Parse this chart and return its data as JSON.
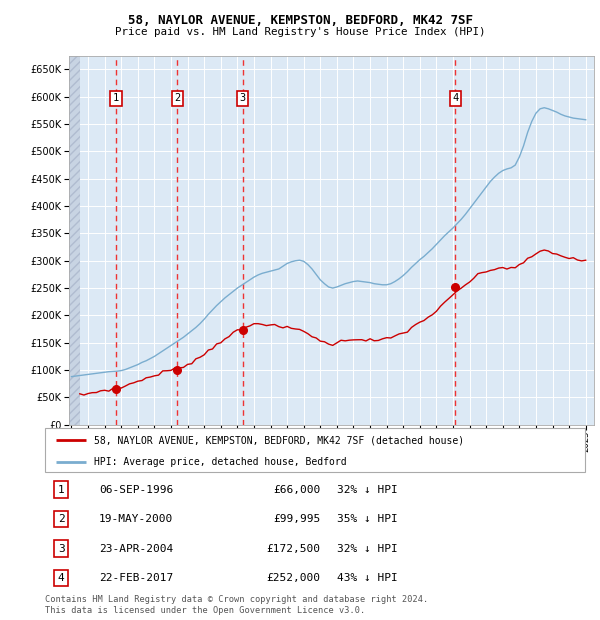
{
  "title1": "58, NAYLOR AVENUE, KEMPSTON, BEDFORD, MK42 7SF",
  "title2": "Price paid vs. HM Land Registry's House Price Index (HPI)",
  "legend_property": "58, NAYLOR AVENUE, KEMPSTON, BEDFORD, MK42 7SF (detached house)",
  "legend_hpi": "HPI: Average price, detached house, Bedford",
  "footer": "Contains HM Land Registry data © Crown copyright and database right 2024.\nThis data is licensed under the Open Government Licence v3.0.",
  "sales": [
    {
      "num": 1,
      "date": "06-SEP-1996",
      "price": 66000,
      "pct": "32% ↓ HPI",
      "year": 1996.69
    },
    {
      "num": 2,
      "date": "19-MAY-2000",
      "price": 99995,
      "pct": "35% ↓ HPI",
      "year": 2000.38
    },
    {
      "num": 3,
      "date": "23-APR-2004",
      "price": 172500,
      "pct": "32% ↓ HPI",
      "year": 2004.31
    },
    {
      "num": 4,
      "date": "22-FEB-2017",
      "price": 252000,
      "pct": "43% ↓ HPI",
      "year": 2017.14
    }
  ],
  "hpi_color": "#7aadcf",
  "property_color": "#cc0000",
  "background_color": "#dce9f5",
  "grid_color": "#ffffff",
  "vline_color": "#ee3333",
  "ylim": [
    0,
    675000
  ],
  "ytick_step": 50000,
  "xlim_start": 1994.0,
  "xlim_end": 2025.5,
  "hpi_years": [
    1994.0,
    1994.25,
    1994.5,
    1994.75,
    1995.0,
    1995.25,
    1995.5,
    1995.75,
    1996.0,
    1996.25,
    1996.5,
    1996.75,
    1997.0,
    1997.25,
    1997.5,
    1997.75,
    1998.0,
    1998.25,
    1998.5,
    1998.75,
    1999.0,
    1999.25,
    1999.5,
    1999.75,
    2000.0,
    2000.25,
    2000.5,
    2000.75,
    2001.0,
    2001.25,
    2001.5,
    2001.75,
    2002.0,
    2002.25,
    2002.5,
    2002.75,
    2003.0,
    2003.25,
    2003.5,
    2003.75,
    2004.0,
    2004.25,
    2004.5,
    2004.75,
    2005.0,
    2005.25,
    2005.5,
    2005.75,
    2006.0,
    2006.25,
    2006.5,
    2006.75,
    2007.0,
    2007.25,
    2007.5,
    2007.75,
    2008.0,
    2008.25,
    2008.5,
    2008.75,
    2009.0,
    2009.25,
    2009.5,
    2009.75,
    2010.0,
    2010.25,
    2010.5,
    2010.75,
    2011.0,
    2011.25,
    2011.5,
    2011.75,
    2012.0,
    2012.25,
    2012.5,
    2012.75,
    2013.0,
    2013.25,
    2013.5,
    2013.75,
    2014.0,
    2014.25,
    2014.5,
    2014.75,
    2015.0,
    2015.25,
    2015.5,
    2015.75,
    2016.0,
    2016.25,
    2016.5,
    2016.75,
    2017.0,
    2017.25,
    2017.5,
    2017.75,
    2018.0,
    2018.25,
    2018.5,
    2018.75,
    2019.0,
    2019.25,
    2019.5,
    2019.75,
    2020.0,
    2020.25,
    2020.5,
    2020.75,
    2021.0,
    2021.25,
    2021.5,
    2021.75,
    2022.0,
    2022.25,
    2022.5,
    2022.75,
    2023.0,
    2023.25,
    2023.5,
    2023.75,
    2024.0,
    2024.25,
    2024.5,
    2024.75,
    2025.0
  ],
  "hpi_values": [
    88000,
    89000,
    90000,
    91000,
    92000,
    93000,
    94000,
    95000,
    96000,
    97000,
    97500,
    98000,
    99000,
    101000,
    104000,
    107000,
    110000,
    114000,
    117000,
    121000,
    125000,
    130000,
    135000,
    140000,
    145000,
    150000,
    155000,
    160000,
    166000,
    172000,
    178000,
    185000,
    193000,
    202000,
    210000,
    218000,
    225000,
    232000,
    238000,
    244000,
    250000,
    255000,
    260000,
    265000,
    270000,
    274000,
    277000,
    279000,
    281000,
    283000,
    285000,
    290000,
    295000,
    298000,
    300000,
    301000,
    299000,
    293000,
    285000,
    275000,
    265000,
    258000,
    252000,
    250000,
    252000,
    255000,
    258000,
    260000,
    262000,
    263000,
    262000,
    261000,
    260000,
    258000,
    257000,
    256000,
    256000,
    258000,
    262000,
    267000,
    273000,
    280000,
    288000,
    295000,
    302000,
    308000,
    315000,
    322000,
    330000,
    338000,
    346000,
    353000,
    360000,
    368000,
    376000,
    385000,
    395000,
    405000,
    415000,
    425000,
    435000,
    445000,
    453000,
    460000,
    465000,
    468000,
    470000,
    475000,
    490000,
    510000,
    535000,
    555000,
    570000,
    578000,
    580000,
    578000,
    575000,
    572000,
    568000,
    565000,
    563000,
    561000,
    560000,
    559000,
    558000
  ],
  "prop_years": [
    1994.5,
    1994.75,
    1995.0,
    1995.25,
    1995.5,
    1995.75,
    1996.0,
    1996.25,
    1996.5,
    1996.75,
    1997.0,
    1997.25,
    1997.5,
    1997.75,
    1998.0,
    1998.25,
    1998.5,
    1998.75,
    1999.0,
    1999.25,
    1999.5,
    1999.75,
    2000.0,
    2000.25,
    2000.5,
    2000.75,
    2001.0,
    2001.25,
    2001.5,
    2001.75,
    2002.0,
    2002.25,
    2002.5,
    2002.75,
    2003.0,
    2003.25,
    2003.5,
    2003.75,
    2004.0,
    2004.25,
    2004.5,
    2004.75,
    2005.0,
    2005.25,
    2005.5,
    2005.75,
    2006.0,
    2006.25,
    2006.5,
    2006.75,
    2007.0,
    2007.25,
    2007.5,
    2007.75,
    2008.0,
    2008.25,
    2008.5,
    2008.75,
    2009.0,
    2009.25,
    2009.5,
    2009.75,
    2010.0,
    2010.25,
    2010.5,
    2010.75,
    2011.0,
    2011.25,
    2011.5,
    2011.75,
    2012.0,
    2012.25,
    2012.5,
    2012.75,
    2013.0,
    2013.25,
    2013.5,
    2013.75,
    2014.0,
    2014.25,
    2014.5,
    2014.75,
    2015.0,
    2015.25,
    2015.5,
    2015.75,
    2016.0,
    2016.25,
    2016.5,
    2016.75,
    2017.0,
    2017.25,
    2017.5,
    2017.75,
    2018.0,
    2018.25,
    2018.5,
    2018.75,
    2019.0,
    2019.25,
    2019.5,
    2019.75,
    2020.0,
    2020.25,
    2020.5,
    2020.75,
    2021.0,
    2021.25,
    2021.5,
    2021.75,
    2022.0,
    2022.25,
    2022.5,
    2022.75,
    2023.0,
    2023.25,
    2023.5,
    2023.75,
    2024.0,
    2024.25,
    2024.5,
    2024.75,
    2025.0
  ],
  "prop_values": [
    54000,
    55000,
    57000,
    58000,
    60000,
    62000,
    63000,
    64000,
    65000,
    66500,
    68000,
    71000,
    74000,
    77000,
    80000,
    83000,
    85000,
    87000,
    89000,
    93000,
    96000,
    98500,
    100000,
    101000,
    104000,
    107000,
    111000,
    115000,
    119000,
    124000,
    129000,
    135000,
    141000,
    147000,
    153000,
    158000,
    163000,
    167000,
    171000,
    174000,
    177000,
    181000,
    184000,
    186000,
    186000,
    184000,
    182000,
    180000,
    179000,
    178000,
    177000,
    176000,
    175000,
    174000,
    171000,
    167000,
    163000,
    158000,
    153000,
    150000,
    148000,
    148000,
    150000,
    152000,
    154000,
    156000,
    157000,
    157000,
    156000,
    155000,
    155000,
    154000,
    154000,
    155000,
    157000,
    159000,
    162000,
    165000,
    168000,
    172000,
    177000,
    182000,
    187000,
    192000,
    197000,
    202000,
    208000,
    215000,
    222000,
    230000,
    237000,
    244000,
    250000,
    256000,
    262000,
    268000,
    273000,
    277000,
    280000,
    283000,
    285000,
    286000,
    287000,
    287000,
    287000,
    288000,
    291000,
    296000,
    302000,
    308000,
    313000,
    317000,
    318000,
    317000,
    315000,
    312000,
    309000,
    307000,
    305000,
    303000,
    302000,
    301000,
    300000
  ]
}
